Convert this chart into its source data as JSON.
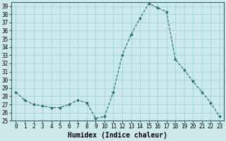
{
  "x": [
    0,
    1,
    2,
    3,
    4,
    5,
    6,
    7,
    8,
    9,
    10,
    11,
    12,
    13,
    14,
    15,
    16,
    17,
    18,
    19,
    20,
    21,
    22,
    23
  ],
  "y": [
    28.5,
    27.5,
    27.0,
    26.8,
    26.6,
    26.6,
    27.0,
    27.5,
    27.2,
    25.3,
    25.5,
    28.5,
    33.0,
    35.5,
    37.5,
    39.3,
    38.8,
    38.3,
    32.5,
    31.2,
    29.8,
    28.5,
    27.2,
    25.5
  ],
  "line_color": "#1a6b5a",
  "marker": "*",
  "marker_size": 3,
  "bg_color": "#cceaea",
  "grid_color": "#99cccc",
  "xlabel": "Humidex (Indice chaleur)",
  "xlim": [
    -0.5,
    23.5
  ],
  "ylim": [
    25,
    39.5
  ],
  "yticks": [
    25,
    26,
    27,
    28,
    29,
    30,
    31,
    32,
    33,
    34,
    35,
    36,
    37,
    38,
    39
  ],
  "xticks": [
    0,
    1,
    2,
    3,
    4,
    5,
    6,
    7,
    8,
    9,
    10,
    11,
    12,
    13,
    14,
    15,
    16,
    17,
    18,
    19,
    20,
    21,
    22,
    23
  ],
  "tick_font_size": 5.5,
  "label_font_size": 7
}
